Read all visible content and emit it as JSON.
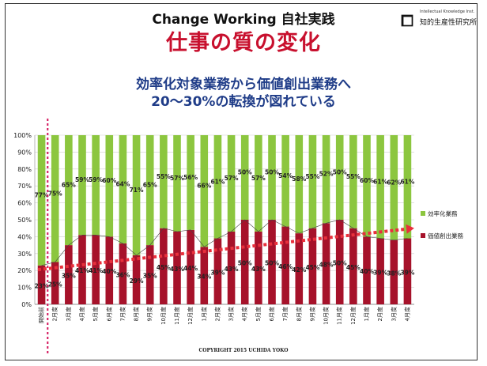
{
  "header": {
    "brand": "Change Working 自社実践",
    "title": "仕事の質の変化",
    "subtitle_line1": "効率化対象業務から価値創出業務へ",
    "subtitle_line2": "20～30%の転換が図れている"
  },
  "logo": {
    "mark": "⧠",
    "text_en": "Intellectual Knowledge Inst.",
    "text_jp": "知的生産性研究所"
  },
  "footer": {
    "copyright": "COPYRIGHT 2015 UCHIDA YOKO"
  },
  "colors": {
    "green": "#8cc63f",
    "red": "#a6122a",
    "arrow": "#e8303c",
    "grid": "#cfcfcf"
  },
  "chart_data": {
    "type": "bar",
    "stacked": true,
    "categories": [
      "開始前",
      "2月度",
      "3月度",
      "4月度",
      "5月度",
      "6月度",
      "7月度",
      "8月度",
      "9月度",
      "10月度",
      "11月度",
      "12月度",
      "1月度",
      "2月度",
      "3月度",
      "4月度",
      "5月度",
      "6月度",
      "7月度",
      "8月度",
      "9月度",
      "10月度",
      "11月度",
      "12月度",
      "1月度",
      "2月度",
      "3月度",
      "4月度"
    ],
    "series": [
      {
        "name": "価値創出業務",
        "color": "#a6122a",
        "values": [
          23,
          25,
          35,
          41,
          41,
          40,
          36,
          29,
          35,
          45,
          43,
          44,
          34,
          39,
          43,
          50,
          43,
          50,
          46,
          42,
          45,
          48,
          50,
          45,
          40,
          39,
          38,
          39
        ],
        "labels": [
          "23%",
          "25%",
          "35%",
          "41%",
          "41%",
          "40%",
          "36%",
          "29%",
          "35%",
          "45%",
          "43%",
          "44%",
          "34%",
          "39%",
          "43%",
          "50%",
          "43%",
          "50%",
          "46%",
          "42%",
          "45%",
          "48%",
          "50%",
          "45%",
          "40%",
          "39%",
          "38%",
          "39%"
        ]
      },
      {
        "name": "効率化業務",
        "color": "#8cc63f",
        "values": [
          77,
          75,
          65,
          59,
          59,
          60,
          64,
          71,
          65,
          55,
          57,
          56,
          66,
          61,
          57,
          50,
          57,
          50,
          54,
          58,
          55,
          52,
          50,
          55,
          60,
          61,
          62,
          61
        ],
        "labels": [
          "77%",
          "75%",
          "65%",
          "59%",
          "59%",
          "60%",
          "64%",
          "71%",
          "65%",
          "55%",
          "57%",
          "56%",
          "66%",
          "61%",
          "57%",
          "50%",
          "57%",
          "50%",
          "54%",
          "58%",
          "55%",
          "52%",
          "50%",
          "55%",
          "60%",
          "61%",
          "62%",
          "61%"
        ]
      }
    ],
    "yticks": [
      "0%",
      "10%",
      "20%",
      "30%",
      "40%",
      "50%",
      "60%",
      "70%",
      "80%",
      "90%",
      "100%"
    ],
    "ylim": [
      0,
      100
    ],
    "legend": "right",
    "grid": true
  }
}
